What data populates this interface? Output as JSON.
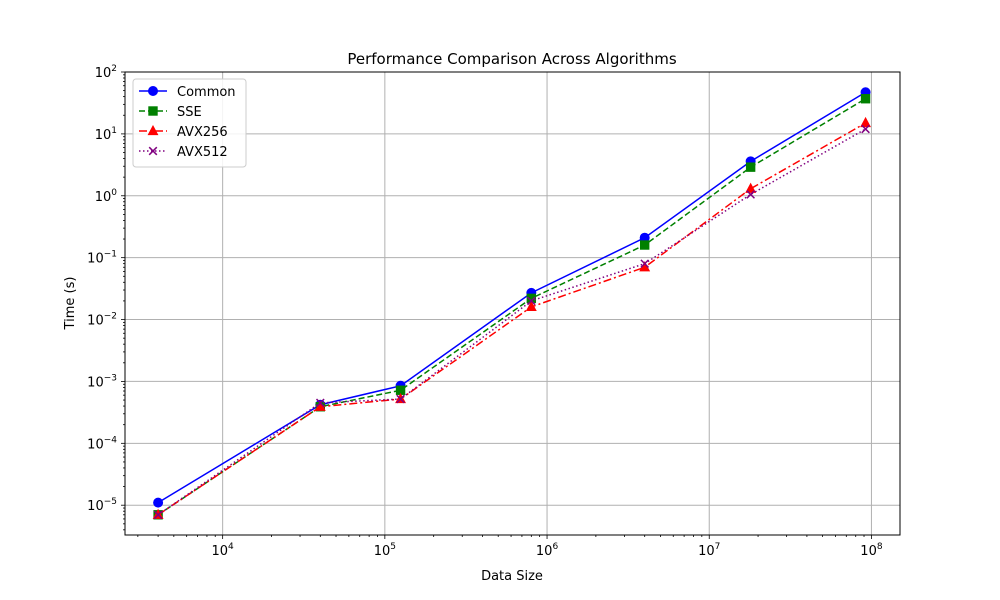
{
  "chart_data": {
    "type": "line",
    "title": "Performance Comparison Across Algorithms",
    "xlabel": "Data Size",
    "ylabel": "Time (s)",
    "xscale": "log",
    "yscale": "log",
    "xlim": [
      2500,
      150000000
    ],
    "ylim": [
      3.3e-06,
      100
    ],
    "grid": true,
    "legend_position": "top-left",
    "x": [
      4000,
      40000,
      125000,
      800000,
      4000000,
      18000000,
      92000000
    ],
    "x_ticks": [
      {
        "value": 10000,
        "base": "10",
        "exp": "4"
      },
      {
        "value": 100000,
        "base": "10",
        "exp": "5"
      },
      {
        "value": 1000000,
        "base": "10",
        "exp": "6"
      },
      {
        "value": 10000000,
        "base": "10",
        "exp": "7"
      },
      {
        "value": 100000000,
        "base": "10",
        "exp": "8"
      }
    ],
    "y_ticks": [
      {
        "value": 1e-05,
        "base": "10",
        "exp": "−5"
      },
      {
        "value": 0.0001,
        "base": "10",
        "exp": "−4"
      },
      {
        "value": 0.001,
        "base": "10",
        "exp": "−3"
      },
      {
        "value": 0.01,
        "base": "10",
        "exp": "−2"
      },
      {
        "value": 0.1,
        "base": "10",
        "exp": "−1"
      },
      {
        "value": 1,
        "base": "10",
        "exp": "0"
      },
      {
        "value": 10,
        "base": "10",
        "exp": "1"
      },
      {
        "value": 100,
        "base": "10",
        "exp": "2"
      }
    ],
    "series": [
      {
        "name": "Common",
        "color": "#0000ff",
        "dash": "solid",
        "marker": "circle",
        "values": [
          1.1e-05,
          0.00042,
          0.00085,
          0.027,
          0.21,
          3.6,
          47
        ]
      },
      {
        "name": "SSE",
        "color": "#008000",
        "dash": "dashed",
        "marker": "square",
        "values": [
          7e-06,
          0.00039,
          0.00072,
          0.022,
          0.16,
          2.9,
          37
        ]
      },
      {
        "name": "AVX256",
        "color": "#ff0000",
        "dash": "dashdot",
        "marker": "triangle",
        "values": [
          7e-06,
          0.00039,
          0.00052,
          0.016,
          0.07,
          1.3,
          15
        ]
      },
      {
        "name": "AVX512",
        "color": "#800080",
        "dash": "dotted",
        "marker": "x",
        "values": [
          7e-06,
          0.00045,
          0.00052,
          0.02,
          0.08,
          1.05,
          12
        ]
      }
    ]
  }
}
